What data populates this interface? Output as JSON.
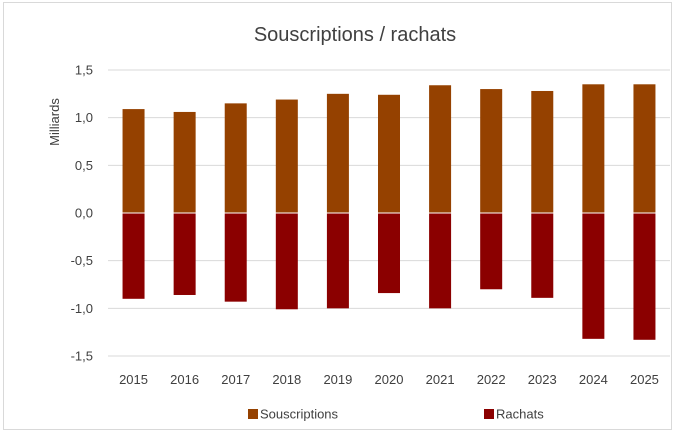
{
  "chart_data": {
    "type": "bar",
    "title": "Souscriptions / rachats",
    "ylabel": "Milliards",
    "xlabel": "",
    "ylim": [
      -1.5,
      1.5
    ],
    "yticks": [
      "1,5",
      "1,0",
      "0,5",
      "0,0",
      "-0,5",
      "-1,0",
      "-1,5"
    ],
    "ytick_values": [
      1.5,
      1.0,
      0.5,
      0.0,
      -0.5,
      -1.0,
      -1.5
    ],
    "categories": [
      "2015",
      "2016",
      "2017",
      "2018",
      "2019",
      "2020",
      "2021",
      "2022",
      "2023",
      "2024",
      "2025"
    ],
    "series": [
      {
        "name": "Souscriptions",
        "color": "#954100",
        "values": [
          1.09,
          1.06,
          1.15,
          1.19,
          1.25,
          1.24,
          1.34,
          1.3,
          1.28,
          1.35,
          1.35
        ]
      },
      {
        "name": "Rachats",
        "color": "#8B0000",
        "values": [
          -0.9,
          -0.86,
          -0.93,
          -1.01,
          -1.0,
          -0.84,
          -1.0,
          -0.8,
          -0.89,
          -1.32,
          -1.33
        ]
      }
    ],
    "stacked": true,
    "grid": true,
    "legend_position": "bottom"
  }
}
